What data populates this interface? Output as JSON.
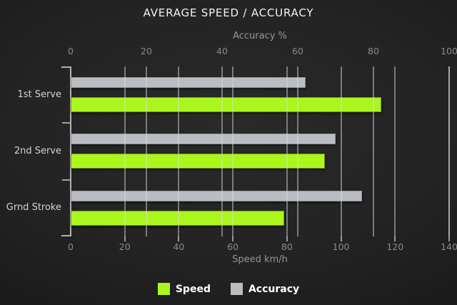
{
  "title": "AVERAGE SPEED / ACCURACY",
  "chart_data": {
    "type": "bar",
    "orientation": "horizontal",
    "categories": [
      "1st Serve",
      "2nd Serve",
      "Grnd Stroke"
    ],
    "series": [
      {
        "name": "Speed",
        "axis": "bottom",
        "color": "#abf71d",
        "values": [
          115,
          94,
          79
        ]
      },
      {
        "name": "Accuracy",
        "axis": "top",
        "color": "#b9bdc1",
        "values": [
          62,
          70,
          77
        ]
      }
    ],
    "top_axis": {
      "label": "Accuracy %",
      "min": 0,
      "max": 100,
      "ticks": [
        0,
        20,
        40,
        60,
        80,
        100
      ]
    },
    "bottom_axis": {
      "label": "Speed km/h",
      "min": 0,
      "max": 140,
      "ticks": [
        0,
        20,
        40,
        60,
        80,
        100,
        120,
        140
      ]
    },
    "legend": {
      "position": "bottom",
      "entries": [
        "Speed",
        "Accuracy"
      ]
    },
    "grid": true,
    "row_order_in_group": [
      "Accuracy",
      "Speed"
    ]
  },
  "colors": {
    "background": "#1e1e1e",
    "speed_bar": "#abf71d",
    "accuracy_bar": "#b9bdc1",
    "grid_line": "#9a9a9a",
    "axis_text": "#8f8f8f",
    "category_text": "#d4d4d4",
    "title_text": "#f2f2f2",
    "legend_text": "#ffffff"
  }
}
